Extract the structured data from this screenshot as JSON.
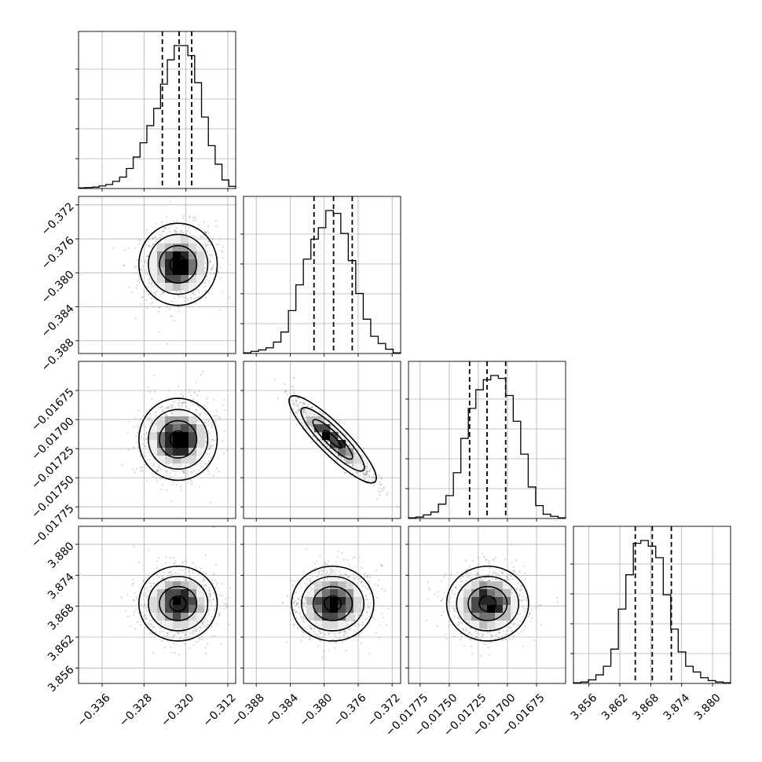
{
  "chart_data": {
    "type": "corner",
    "grid": true,
    "parameters": [
      {
        "range": [
          -0.3405,
          -0.3105
        ],
        "ticks": [
          -0.336,
          -0.328,
          -0.32,
          -0.312
        ],
        "tick_labels": [
          "−0.336",
          "−0.328",
          "−0.320",
          "−0.312"
        ],
        "quantiles": [
          -0.3245,
          -0.3213,
          -0.3189
        ],
        "mean": -0.3215,
        "sd": 0.0034,
        "hist": [
          0.5,
          0.7,
          1.0,
          1.8,
          2.8,
          5,
          8,
          14,
          22,
          32,
          44,
          56,
          73,
          90,
          100,
          100,
          93,
          74,
          50,
          30,
          17,
          6,
          1.5
        ]
      },
      {
        "range": [
          -0.3895,
          -0.371
        ],
        "ticks": [
          -0.388,
          -0.384,
          -0.38,
          -0.376,
          -0.372
        ],
        "tick_labels": [
          "−0.388",
          "−0.384",
          "−0.380",
          "−0.376",
          "−0.372"
        ],
        "quantiles": [
          -0.3812,
          -0.3789,
          -0.3767
        ],
        "mean": -0.379,
        "sd": 0.0022,
        "hist": [
          0.5,
          1.5,
          2.5,
          4,
          8,
          15,
          30,
          48,
          66,
          80,
          88,
          100,
          98,
          84,
          65,
          42,
          24,
          12,
          7,
          3,
          0.5
        ]
      },
      {
        "range": [
          -0.01785,
          -0.0165
        ],
        "ticks": [
          -0.01775,
          -0.0175,
          -0.01725,
          -0.017,
          -0.01675
        ],
        "tick_labels": [
          "−0.01775",
          "−0.01750",
          "−0.01725",
          "−0.01700",
          "−0.01675"
        ],
        "quantiles": [
          -0.017325,
          -0.017175,
          -0.017015
        ],
        "mean": -0.01717,
        "sd": 0.00016,
        "hist": [
          0.5,
          1,
          2.5,
          4.5,
          10,
          16,
          32,
          56,
          77,
          90,
          97,
          100,
          98,
          86,
          68,
          45,
          22,
          9,
          3,
          1.5,
          0.5
        ]
      },
      {
        "range": [
          3.853,
          3.8835
        ],
        "ticks": [
          3.856,
          3.862,
          3.868,
          3.874,
          3.88
        ],
        "tick_labels": [
          "3.856",
          "3.862",
          "3.868",
          "3.874",
          "3.880"
        ],
        "quantiles": [
          3.865,
          3.8683,
          3.872
        ],
        "mean": 3.8685,
        "sd": 0.0033,
        "hist": [
          0.5,
          1,
          2.5,
          6,
          12,
          24,
          52,
          76,
          98,
          100,
          96,
          88,
          62,
          38,
          22,
          12,
          8,
          4,
          2,
          1,
          0.5
        ]
      }
    ],
    "correlations": {
      "1_0": 0.1,
      "2_0": 0.05,
      "2_1": -0.93,
      "3_0": 0.0,
      "3_1": 0.05,
      "3_2": 0.0
    },
    "title": "",
    "xlabel": "",
    "ylabel": ""
  }
}
